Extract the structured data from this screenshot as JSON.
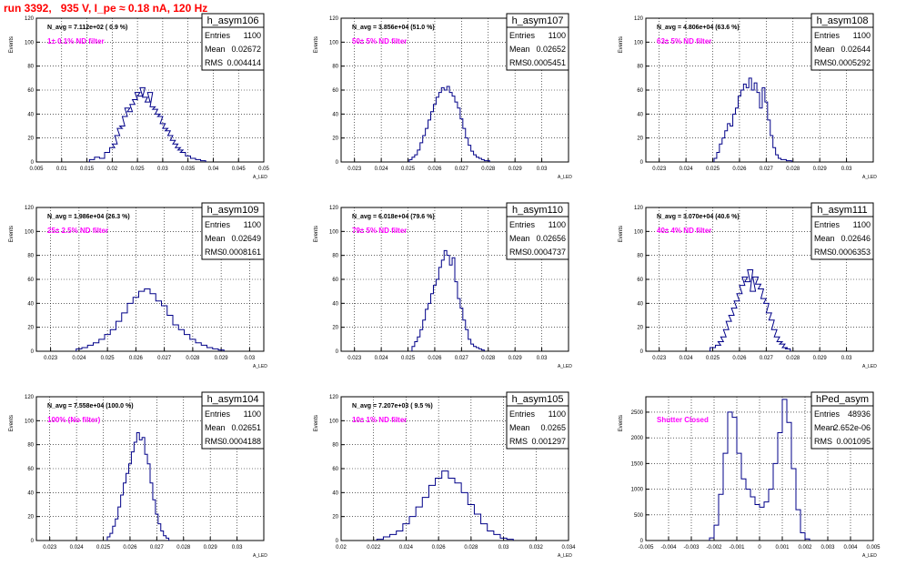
{
  "title": "run 3392,   935 V, I_pe ≈ 0.18 nA, 120 Hz",
  "chart_data": [
    {
      "type": "bar",
      "name": "h_asym106",
      "ylabel": "Events",
      "xlabel": "A_LED",
      "xlim": [
        0.005,
        0.05
      ],
      "ylim": [
        0,
        120
      ],
      "xticks": [
        "0.005",
        "0.01",
        "0.015",
        "0.02",
        "0.025",
        "0.03",
        "0.035",
        "0.04",
        "0.045",
        "0.05"
      ],
      "yticks": [
        "0",
        "20",
        "40",
        "60",
        "80",
        "100",
        "120"
      ],
      "grid": true,
      "navg": "N_avg = 7.112e+02 ( 0.9 %)",
      "filter": "1± 0.1% ND filter",
      "stats": [
        [
          "Entries",
          "1100"
        ],
        [
          "Mean",
          "0.02672"
        ],
        [
          "RMS",
          "0.004414"
        ]
      ],
      "x": [
        0.016,
        0.017,
        0.018,
        0.019,
        0.02,
        0.0205,
        0.021,
        0.0215,
        0.022,
        0.0225,
        0.023,
        0.0235,
        0.024,
        0.0245,
        0.025,
        0.0255,
        0.026,
        0.0265,
        0.027,
        0.0275,
        0.028,
        0.0285,
        0.029,
        0.0295,
        0.03,
        0.0305,
        0.031,
        0.0315,
        0.032,
        0.0325,
        0.033,
        0.0335,
        0.034,
        0.035,
        0.036,
        0.037,
        0.038
      ],
      "values": [
        2,
        4,
        3,
        8,
        12,
        15,
        22,
        28,
        30,
        38,
        45,
        42,
        48,
        52,
        58,
        55,
        62,
        54,
        50,
        58,
        46,
        44,
        40,
        38,
        32,
        28,
        26,
        22,
        18,
        15,
        12,
        10,
        8,
        5,
        3,
        2,
        1
      ]
    },
    {
      "type": "bar",
      "name": "h_asym107",
      "ylabel": "Events",
      "xlabel": "A_LED",
      "xlim": [
        0.0225,
        0.031
      ],
      "ylim": [
        0,
        120
      ],
      "xticks": [
        "0.023",
        "0.024",
        "0.025",
        "0.026",
        "0.027",
        "0.028",
        "0.029",
        "0.03"
      ],
      "yticks": [
        "0",
        "20",
        "40",
        "60",
        "80",
        "100",
        "120"
      ],
      "grid": true,
      "navg": "N_avg = 3.856e+04 (51.0 %)",
      "filter": "50± 5% ND filter",
      "stats": [
        [
          "Entries",
          "1100"
        ],
        [
          "Mean",
          "0.02652"
        ],
        [
          "RMS",
          "0.0005451"
        ]
      ],
      "x": [
        0.0251,
        0.0252,
        0.0253,
        0.0254,
        0.0255,
        0.0256,
        0.0257,
        0.0258,
        0.0259,
        0.026,
        0.0261,
        0.0262,
        0.0263,
        0.0264,
        0.0265,
        0.0266,
        0.0267,
        0.0268,
        0.0269,
        0.027,
        0.0271,
        0.0272,
        0.0273,
        0.0274,
        0.0275,
        0.0276,
        0.0277,
        0.0278,
        0.0279,
        0.028
      ],
      "values": [
        2,
        4,
        6,
        10,
        16,
        22,
        28,
        35,
        42,
        48,
        54,
        58,
        62,
        60,
        63,
        58,
        55,
        50,
        45,
        36,
        28,
        20,
        14,
        9,
        6,
        4,
        3,
        2,
        1,
        1
      ]
    },
    {
      "type": "bar",
      "name": "h_asym108",
      "ylabel": "Events",
      "xlabel": "A_LED",
      "xlim": [
        0.0225,
        0.031
      ],
      "ylim": [
        0,
        120
      ],
      "xticks": [
        "0.023",
        "0.024",
        "0.025",
        "0.026",
        "0.027",
        "0.028",
        "0.029",
        "0.03"
      ],
      "yticks": [
        "0",
        "20",
        "40",
        "60",
        "80",
        "100",
        "120"
      ],
      "grid": true,
      "navg": "N_avg = 4.806e+04 (63.6 %)",
      "filter": "63± 5% ND filter",
      "stats": [
        [
          "Entries",
          "1100"
        ],
        [
          "Mean",
          "0.02644"
        ],
        [
          "RMS",
          "0.0005292"
        ]
      ],
      "x": [
        0.0251,
        0.0252,
        0.0253,
        0.0254,
        0.0255,
        0.0256,
        0.0257,
        0.0258,
        0.0259,
        0.026,
        0.0261,
        0.0262,
        0.0263,
        0.0264,
        0.0265,
        0.0266,
        0.0267,
        0.0268,
        0.0269,
        0.027,
        0.0271,
        0.0272,
        0.0273,
        0.0274,
        0.0275,
        0.0276,
        0.0277,
        0.0278,
        0.0279
      ],
      "values": [
        3,
        8,
        15,
        20,
        26,
        32,
        30,
        40,
        45,
        55,
        60,
        65,
        62,
        70,
        60,
        66,
        58,
        45,
        62,
        50,
        35,
        22,
        12,
        6,
        3,
        2,
        2,
        1,
        1
      ]
    },
    {
      "type": "bar",
      "name": "h_asym109",
      "ylabel": "Events",
      "xlabel": "A_LED",
      "xlim": [
        0.0225,
        0.0305
      ],
      "ylim": [
        0,
        120
      ],
      "xticks": [
        "0.023",
        "0.024",
        "0.025",
        "0.026",
        "0.027",
        "0.028",
        "0.029",
        "0.03"
      ],
      "yticks": [
        "0",
        "20",
        "40",
        "60",
        "80",
        "100",
        "120"
      ],
      "grid": true,
      "navg": "N_avg = 1.986e+04 (26.3 %)",
      "filter": "25± 2.5% ND filter",
      "stats": [
        [
          "Entries",
          "1100"
        ],
        [
          "Mean",
          "0.02649"
        ],
        [
          "RMS",
          "0.0008161"
        ]
      ],
      "x": [
        0.024,
        0.0242,
        0.0244,
        0.0246,
        0.0248,
        0.025,
        0.0252,
        0.0254,
        0.0256,
        0.0258,
        0.026,
        0.0262,
        0.0264,
        0.0266,
        0.0268,
        0.027,
        0.0272,
        0.0274,
        0.0276,
        0.0278,
        0.028,
        0.0282,
        0.0284,
        0.0286,
        0.0288,
        0.029
      ],
      "values": [
        2,
        3,
        5,
        7,
        10,
        14,
        18,
        25,
        32,
        40,
        45,
        50,
        52,
        48,
        42,
        38,
        30,
        22,
        18,
        14,
        10,
        7,
        5,
        3,
        2,
        1
      ]
    },
    {
      "type": "bar",
      "name": "h_asym110",
      "ylabel": "Events",
      "xlabel": "A_LED",
      "xlim": [
        0.0225,
        0.031
      ],
      "ylim": [
        0,
        120
      ],
      "xticks": [
        "0.023",
        "0.024",
        "0.025",
        "0.026",
        "0.027",
        "0.028",
        "0.029",
        "0.03"
      ],
      "yticks": [
        "0",
        "20",
        "40",
        "60",
        "80",
        "100",
        "120"
      ],
      "grid": true,
      "navg": "N_avg = 6.018e+04 (79.6 %)",
      "filter": "79± 5% ND filter",
      "stats": [
        [
          "Entries",
          "1100"
        ],
        [
          "Mean",
          "0.02656"
        ],
        [
          "RMS",
          "0.0004737"
        ]
      ],
      "x": [
        0.0252,
        0.0253,
        0.0254,
        0.0255,
        0.0256,
        0.0257,
        0.0258,
        0.0259,
        0.026,
        0.0261,
        0.0262,
        0.0263,
        0.0264,
        0.0265,
        0.0266,
        0.0267,
        0.0268,
        0.0269,
        0.027,
        0.0271,
        0.0272,
        0.0273,
        0.0274,
        0.0275,
        0.0276,
        0.0277,
        0.0278
      ],
      "values": [
        4,
        8,
        12,
        18,
        26,
        35,
        40,
        48,
        55,
        60,
        70,
        76,
        84,
        80,
        72,
        78,
        58,
        44,
        36,
        26,
        18,
        10,
        6,
        4,
        3,
        2,
        1
      ]
    },
    {
      "type": "bar",
      "name": "h_asym111",
      "ylabel": "Events",
      "xlabel": "A_LED",
      "xlim": [
        0.0225,
        0.031
      ],
      "ylim": [
        0,
        120
      ],
      "xticks": [
        "0.023",
        "0.024",
        "0.025",
        "0.026",
        "0.027",
        "0.028",
        "0.029",
        "0.03"
      ],
      "yticks": [
        "0",
        "20",
        "40",
        "60",
        "80",
        "100",
        "120"
      ],
      "grid": true,
      "navg": "N_avg = 3.070e+04 (40.6 %)",
      "filter": "40± 4% ND filter",
      "stats": [
        [
          "Entries",
          "1100"
        ],
        [
          "Mean",
          "0.02646"
        ],
        [
          "RMS",
          "0.0006353"
        ]
      ],
      "x": [
        0.025,
        0.0252,
        0.0253,
        0.0254,
        0.0255,
        0.0256,
        0.0257,
        0.0258,
        0.0259,
        0.026,
        0.0261,
        0.0262,
        0.0263,
        0.0264,
        0.0265,
        0.0266,
        0.0267,
        0.0268,
        0.0269,
        0.027,
        0.0271,
        0.0272,
        0.0273,
        0.0274,
        0.0275,
        0.0276,
        0.0277,
        0.0278
      ],
      "values": [
        3,
        5,
        8,
        12,
        18,
        25,
        30,
        36,
        42,
        48,
        55,
        62,
        58,
        68,
        50,
        62,
        56,
        52,
        44,
        40,
        32,
        26,
        18,
        12,
        8,
        6,
        3,
        2
      ]
    },
    {
      "type": "bar",
      "name": "h_asym104",
      "ylabel": "Events",
      "xlabel": "A_LED",
      "xlim": [
        0.0225,
        0.031
      ],
      "ylim": [
        0,
        120
      ],
      "xticks": [
        "0.023",
        "0.024",
        "0.025",
        "0.026",
        "0.027",
        "0.028",
        "0.029",
        "0.03"
      ],
      "yticks": [
        "0",
        "20",
        "40",
        "60",
        "80",
        "100",
        "120"
      ],
      "grid": true,
      "navg": "N_avg = 7.558e+04 (100.0 %)",
      "filter": "100% (No filter)",
      "stats": [
        [
          "Entries",
          "1100"
        ],
        [
          "Mean",
          "0.02651"
        ],
        [
          "RMS",
          "0.0004188"
        ]
      ],
      "x": [
        0.0252,
        0.0253,
        0.0254,
        0.0255,
        0.0256,
        0.0257,
        0.0258,
        0.0259,
        0.026,
        0.0261,
        0.0262,
        0.0263,
        0.0264,
        0.0265,
        0.0266,
        0.0267,
        0.0268,
        0.0269,
        0.027,
        0.0271,
        0.0272,
        0.0273,
        0.0274
      ],
      "values": [
        3,
        6,
        12,
        18,
        28,
        38,
        48,
        56,
        64,
        74,
        82,
        90,
        84,
        86,
        72,
        64,
        48,
        34,
        22,
        14,
        8,
        4,
        2
      ]
    },
    {
      "type": "bar",
      "name": "h_asym105",
      "ylabel": "Events",
      "xlabel": "A_LED",
      "xlim": [
        0.02,
        0.034
      ],
      "ylim": [
        0,
        120
      ],
      "xticks": [
        "0.02",
        "0.022",
        "0.024",
        "0.026",
        "0.028",
        "0.03",
        "0.032",
        "0.034"
      ],
      "yticks": [
        "0",
        "20",
        "40",
        "60",
        "80",
        "100",
        "120"
      ],
      "grid": true,
      "navg": "N_avg = 7.207e+03 ( 9.5 %)",
      "filter": "10± 1% ND filter",
      "stats": [
        [
          "Entries",
          "1100"
        ],
        [
          "Mean",
          "0.0265"
        ],
        [
          "RMS",
          "0.001297"
        ]
      ],
      "x": [
        0.0224,
        0.0228,
        0.0232,
        0.0236,
        0.024,
        0.0244,
        0.0248,
        0.0252,
        0.0256,
        0.026,
        0.0264,
        0.0268,
        0.0272,
        0.0276,
        0.028,
        0.0284,
        0.0288,
        0.0292,
        0.0296,
        0.03,
        0.0304
      ],
      "values": [
        1,
        3,
        5,
        8,
        14,
        20,
        28,
        36,
        46,
        52,
        58,
        52,
        48,
        40,
        30,
        22,
        14,
        8,
        5,
        2,
        1
      ]
    },
    {
      "type": "bar",
      "name": "hPed_asym",
      "ylabel": "Events",
      "xlabel": "A_LED",
      "xlim": [
        -0.005,
        0.005
      ],
      "ylim": [
        0,
        2800
      ],
      "xticks": [
        "-0.005",
        "-0.004",
        "-0.003",
        "-0.002",
        "-0.001",
        "0",
        "0.001",
        "0.002",
        "0.003",
        "0.004",
        "0.005"
      ],
      "yticks": [
        "0",
        "500",
        "1000",
        "1500",
        "2000",
        "2500"
      ],
      "grid": true,
      "navg": "",
      "filter": "Shutter Closed",
      "stats": [
        [
          "Entries",
          "48936"
        ],
        [
          "Mean",
          "2.652e-06"
        ],
        [
          "RMS",
          "0.001095"
        ]
      ],
      "x": [
        -0.0021,
        -0.0019,
        -0.0017,
        -0.0015,
        -0.0013,
        -0.0011,
        -0.0009,
        -0.0007,
        -0.0005,
        -0.0003,
        -0.0001,
        0.0001,
        0.0003,
        0.0005,
        0.0007,
        0.0009,
        0.0011,
        0.0013,
        0.0015,
        0.0017,
        0.0019,
        0.0021
      ],
      "values": [
        50,
        300,
        900,
        1700,
        2500,
        2400,
        1700,
        1200,
        1000,
        850,
        700,
        650,
        750,
        1000,
        1500,
        2100,
        2750,
        2300,
        1400,
        600,
        150,
        30
      ]
    }
  ]
}
